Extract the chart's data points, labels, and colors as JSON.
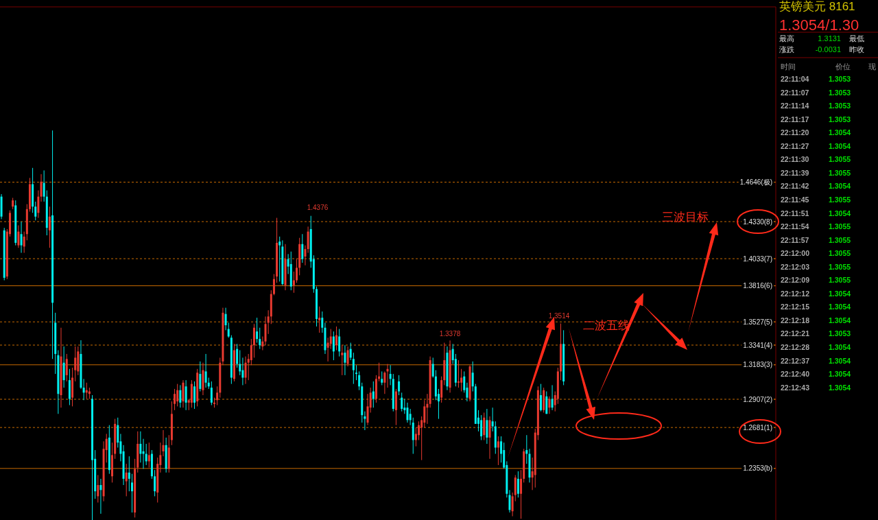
{
  "chart_data": [
    {
      "type": "candlestick",
      "tick_labels": "y",
      "ylim": [
        1.194,
        1.605
      ],
      "yticks": [
        {
          "value": 1.4646,
          "label": "1.4646(极)"
        },
        {
          "value": 1.433,
          "label": "1.4330(8)"
        },
        {
          "value": 1.4033,
          "label": "1.4033(7)"
        },
        {
          "value": 1.3816,
          "label": "1.3816(6)"
        },
        {
          "value": 1.3527,
          "label": "1.3527(5)"
        },
        {
          "value": 1.3341,
          "label": "1.3341(4)"
        },
        {
          "value": 1.3183,
          "label": "1.3183(3)"
        },
        {
          "value": 1.2907,
          "label": "1.2907(2)"
        },
        {
          "value": 1.2681,
          "label": "1.2681(1)"
        },
        {
          "value": 1.2353,
          "label": "1.2353(b)"
        }
      ],
      "categories": [
        null,
        null,
        null,
        null,
        null,
        null,
        null,
        null,
        null,
        null,
        null,
        null,
        null,
        null,
        null,
        null,
        null,
        null,
        null,
        null,
        null,
        null,
        null,
        null,
        null,
        null,
        null,
        null,
        null,
        null,
        null,
        null,
        null,
        null,
        null,
        null,
        null,
        null,
        null,
        null,
        null,
        null,
        null,
        null,
        null,
        null,
        null,
        null,
        null,
        null,
        null,
        null,
        null,
        null,
        null,
        null,
        null,
        null,
        null,
        null,
        null,
        null,
        null,
        null,
        null,
        null,
        null,
        null,
        null,
        null,
        null,
        null,
        null,
        null,
        null,
        null,
        null,
        null,
        null,
        null,
        null,
        null,
        null,
        null,
        null,
        null,
        null,
        null,
        null,
        null,
        null,
        null,
        null,
        null,
        null,
        null,
        null,
        null,
        null,
        null,
        null,
        null,
        null,
        null,
        null,
        null,
        null,
        null,
        null,
        null,
        null,
        null,
        null,
        null,
        null,
        null,
        null,
        null,
        null,
        null,
        null,
        null,
        null,
        null,
        null,
        null,
        null,
        null,
        null,
        null,
        null,
        null,
        null,
        null,
        null,
        null,
        null,
        null,
        null,
        null,
        null,
        null,
        null,
        null,
        null,
        null,
        null,
        null,
        null,
        null,
        null,
        null,
        null,
        null,
        null,
        null,
        null,
        null,
        null,
        null,
        null,
        null,
        null,
        null,
        null,
        null,
        null,
        null,
        null,
        null,
        null,
        null,
        null,
        null,
        null,
        null,
        null,
        null,
        null,
        null,
        null,
        null,
        null,
        null,
        null,
        null,
        null,
        null,
        null,
        null,
        null,
        null,
        null,
        null,
        null,
        null,
        null,
        null,
        null,
        null,
        null,
        null,
        null,
        null,
        null,
        null,
        null,
        null,
        null,
        null,
        null,
        null,
        null,
        null,
        null,
        null,
        null,
        null,
        null,
        null,
        null,
        null,
        null,
        null,
        null,
        null,
        null,
        null,
        null,
        null,
        null,
        null,
        null,
        null,
        null,
        null,
        null,
        null,
        null,
        null,
        null,
        null,
        null,
        null,
        null,
        null,
        null,
        null,
        null,
        null,
        null,
        null,
        null,
        null,
        null,
        null,
        null,
        null,
        null,
        null,
        null,
        null,
        null,
        null,
        null,
        null,
        null,
        null,
        null,
        null,
        null,
        null,
        null
      ],
      "ohlc": [
        [
          1.453,
          1.455,
          1.435,
          1.437
        ],
        [
          1.426,
          1.428,
          1.386,
          1.388
        ],
        [
          1.389,
          1.427,
          1.387,
          1.425
        ],
        [
          1.423,
          1.442,
          1.421,
          1.44
        ],
        [
          1.445,
          1.452,
          1.443,
          1.45
        ],
        [
          1.446,
          1.45,
          1.414,
          1.416
        ],
        [
          1.414,
          1.43,
          1.412,
          1.425
        ],
        [
          1.423,
          1.433,
          1.408,
          1.414
        ],
        [
          1.413,
          1.425,
          1.408,
          1.421
        ],
        [
          1.423,
          1.447,
          1.418,
          1.443
        ],
        [
          1.443,
          1.468,
          1.441,
          1.463
        ],
        [
          1.463,
          1.476,
          1.44,
          1.445
        ],
        [
          1.445,
          1.449,
          1.434,
          1.437
        ],
        [
          1.44,
          1.458,
          1.436,
          1.453
        ],
        [
          1.453,
          1.471,
          1.449,
          1.465
        ],
        [
          1.464,
          1.474,
          1.449,
          1.453
        ],
        [
          1.453,
          1.458,
          1.422,
          1.428
        ],
        [
          1.426,
          1.445,
          1.412,
          1.437
        ],
        [
          1.438,
          1.506,
          1.323,
          1.368
        ],
        [
          1.352,
          1.36,
          1.311,
          1.327
        ],
        [
          1.326,
          1.33,
          1.279,
          1.295
        ],
        [
          1.294,
          1.348,
          1.284,
          1.325
        ],
        [
          1.32,
          1.333,
          1.3,
          1.306
        ],
        [
          1.31,
          1.327,
          1.305,
          1.323
        ],
        [
          1.306,
          1.315,
          1.286,
          1.291
        ],
        [
          1.292,
          1.316,
          1.285,
          1.308
        ],
        [
          1.314,
          1.333,
          1.305,
          1.324
        ],
        [
          1.313,
          1.333,
          1.31,
          1.329
        ],
        [
          1.327,
          1.338,
          1.299,
          1.3
        ],
        [
          1.3,
          1.307,
          1.29,
          1.296
        ],
        [
          1.296,
          1.304,
          1.291,
          1.298
        ],
        [
          1.295,
          1.3,
          1.291,
          1.297
        ],
        [
          1.291,
          1.294,
          1.194,
          1.242
        ],
        [
          1.243,
          1.25,
          1.211,
          1.217
        ],
        [
          1.213,
          1.23,
          1.208,
          1.222
        ],
        [
          1.222,
          1.227,
          1.199,
          1.218
        ],
        [
          1.213,
          1.257,
          1.209,
          1.251
        ],
        [
          1.25,
          1.263,
          1.24,
          1.259
        ],
        [
          1.26,
          1.27,
          1.231,
          1.234
        ],
        [
          1.229,
          1.256,
          1.224,
          1.246
        ],
        [
          1.247,
          1.275,
          1.243,
          1.271
        ],
        [
          1.27,
          1.276,
          1.252,
          1.256
        ],
        [
          1.257,
          1.263,
          1.241,
          1.247
        ],
        [
          1.249,
          1.254,
          1.222,
          1.227
        ],
        [
          1.225,
          1.239,
          1.213,
          1.232
        ],
        [
          1.232,
          1.245,
          1.217,
          1.227
        ],
        [
          1.224,
          1.231,
          1.2,
          1.217
        ],
        [
          1.2,
          1.243,
          1.196,
          1.235
        ],
        [
          1.236,
          1.265,
          1.232,
          1.255
        ],
        [
          1.255,
          1.265,
          1.24,
          1.247
        ],
        [
          1.249,
          1.259,
          1.235,
          1.247
        ],
        [
          1.247,
          1.255,
          1.238,
          1.241
        ],
        [
          1.241,
          1.256,
          1.236,
          1.246
        ],
        [
          1.247,
          1.25,
          1.227,
          1.229
        ],
        [
          1.229,
          1.234,
          1.213,
          1.217
        ],
        [
          1.216,
          1.244,
          1.208,
          1.239
        ],
        [
          1.238,
          1.256,
          1.232,
          1.246
        ],
        [
          1.249,
          1.266,
          1.245,
          1.254
        ],
        [
          1.254,
          1.26,
          1.232,
          1.235
        ],
        [
          1.235,
          1.262,
          1.232,
          1.252
        ],
        [
          1.258,
          1.289,
          1.254,
          1.279
        ],
        [
          1.287,
          1.299,
          1.282,
          1.295
        ],
        [
          1.289,
          1.303,
          1.285,
          1.298
        ],
        [
          1.298,
          1.302,
          1.284,
          1.288
        ],
        [
          1.289,
          1.306,
          1.284,
          1.304
        ],
        [
          1.301,
          1.306,
          1.282,
          1.288
        ],
        [
          1.288,
          1.291,
          1.282,
          1.29
        ],
        [
          1.288,
          1.306,
          1.284,
          1.303
        ],
        [
          1.301,
          1.305,
          1.283,
          1.288
        ],
        [
          1.289,
          1.315,
          1.285,
          1.312
        ],
        [
          1.311,
          1.321,
          1.297,
          1.299
        ],
        [
          1.298,
          1.32,
          1.294,
          1.314
        ],
        [
          1.313,
          1.327,
          1.3,
          1.304
        ],
        [
          1.304,
          1.308,
          1.299,
          1.301
        ],
        [
          1.3,
          1.305,
          1.286,
          1.288
        ],
        [
          1.287,
          1.292,
          1.284,
          1.288
        ],
        [
          1.29,
          1.301,
          1.286,
          1.296
        ],
        [
          1.296,
          1.324,
          1.292,
          1.32
        ],
        [
          1.321,
          1.364,
          1.318,
          1.36
        ],
        [
          1.359,
          1.364,
          1.346,
          1.35
        ],
        [
          1.347,
          1.352,
          1.34,
          1.341
        ],
        [
          1.34,
          1.342,
          1.303,
          1.308
        ],
        [
          1.307,
          1.335,
          1.305,
          1.33
        ],
        [
          1.331,
          1.335,
          1.316,
          1.319
        ],
        [
          1.319,
          1.33,
          1.31,
          1.313
        ],
        [
          1.314,
          1.324,
          1.302,
          1.308
        ],
        [
          1.308,
          1.325,
          1.303,
          1.32
        ],
        [
          1.32,
          1.327,
          1.306,
          1.323
        ],
        [
          1.322,
          1.339,
          1.318,
          1.334
        ],
        [
          1.334,
          1.351,
          1.324,
          1.348
        ],
        [
          1.345,
          1.356,
          1.336,
          1.339
        ],
        [
          1.339,
          1.348,
          1.331,
          1.334
        ],
        [
          1.333,
          1.341,
          1.33,
          1.337
        ],
        [
          1.337,
          1.357,
          1.334,
          1.351
        ],
        [
          1.352,
          1.362,
          1.343,
          1.357
        ],
        [
          1.357,
          1.378,
          1.351,
          1.375
        ],
        [
          1.375,
          1.391,
          1.374,
          1.387
        ],
        [
          1.389,
          1.436,
          1.384,
          1.416
        ],
        [
          1.417,
          1.421,
          1.385,
          1.414
        ],
        [
          1.413,
          1.418,
          1.382,
          1.383
        ],
        [
          1.382,
          1.415,
          1.378,
          1.403
        ],
        [
          1.403,
          1.407,
          1.391,
          1.397
        ],
        [
          1.399,
          1.409,
          1.378,
          1.381
        ],
        [
          1.382,
          1.393,
          1.376,
          1.386
        ],
        [
          1.386,
          1.403,
          1.384,
          1.396
        ],
        [
          1.396,
          1.42,
          1.39,
          1.415
        ],
        [
          1.415,
          1.423,
          1.4,
          1.403
        ],
        [
          1.405,
          1.414,
          1.398,
          1.411
        ],
        [
          1.411,
          1.429,
          1.408,
          1.425
        ],
        [
          1.427,
          1.4376,
          1.396,
          1.401
        ],
        [
          1.403,
          1.406,
          1.376,
          1.379
        ],
        [
          1.379,
          1.381,
          1.349,
          1.355
        ],
        [
          1.354,
          1.365,
          1.344,
          1.356
        ],
        [
          1.356,
          1.361,
          1.344,
          1.348
        ],
        [
          1.348,
          1.352,
          1.327,
          1.33
        ],
        [
          1.332,
          1.34,
          1.321,
          1.336
        ],
        [
          1.335,
          1.347,
          1.331,
          1.341
        ],
        [
          1.341,
          1.345,
          1.322,
          1.329
        ],
        [
          1.334,
          1.349,
          1.33,
          1.342
        ],
        [
          1.341,
          1.347,
          1.325,
          1.329
        ],
        [
          1.326,
          1.334,
          1.31,
          1.328
        ],
        [
          1.328,
          1.334,
          1.31,
          1.32
        ],
        [
          1.319,
          1.333,
          1.317,
          1.33
        ],
        [
          1.331,
          1.336,
          1.322,
          1.324
        ],
        [
          1.323,
          1.328,
          1.303,
          1.314
        ],
        [
          1.312,
          1.318,
          1.306,
          1.311
        ],
        [
          1.31,
          1.313,
          1.298,
          1.301
        ],
        [
          1.301,
          1.304,
          1.272,
          1.278
        ],
        [
          1.277,
          1.281,
          1.266,
          1.275
        ],
        [
          1.272,
          1.295,
          1.27,
          1.285
        ],
        [
          1.284,
          1.3,
          1.28,
          1.296
        ],
        [
          1.297,
          1.305,
          1.284,
          1.291
        ],
        [
          1.291,
          1.31,
          1.288,
          1.307
        ],
        [
          1.307,
          1.32,
          1.305,
          1.309
        ],
        [
          1.307,
          1.313,
          1.302,
          1.304
        ],
        [
          1.304,
          1.313,
          1.295,
          1.312
        ],
        [
          1.313,
          1.319,
          1.3,
          1.315
        ],
        [
          1.311,
          1.318,
          1.302,
          1.307
        ],
        [
          1.307,
          1.311,
          1.281,
          1.283
        ],
        [
          1.282,
          1.299,
          1.27,
          1.297
        ],
        [
          1.305,
          1.31,
          1.294,
          1.297
        ],
        [
          1.292,
          1.296,
          1.281,
          1.283
        ],
        [
          1.284,
          1.291,
          1.279,
          1.282
        ],
        [
          1.284,
          1.288,
          1.272,
          1.274
        ],
        [
          1.279,
          1.283,
          1.27,
          1.274
        ],
        [
          1.272,
          1.276,
          1.247,
          1.258
        ],
        [
          1.258,
          1.268,
          1.253,
          1.263
        ],
        [
          1.262,
          1.273,
          1.258,
          1.27
        ],
        [
          1.268,
          1.277,
          1.242,
          1.274
        ],
        [
          1.272,
          1.29,
          1.268,
          1.285
        ],
        [
          1.284,
          1.295,
          1.271,
          1.287
        ],
        [
          1.287,
          1.325,
          1.284,
          1.322
        ],
        [
          1.319,
          1.324,
          1.308,
          1.309
        ],
        [
          1.309,
          1.314,
          1.29,
          1.293
        ],
        [
          1.295,
          1.299,
          1.275,
          1.289
        ],
        [
          1.292,
          1.309,
          1.288,
          1.306
        ],
        [
          1.306,
          1.336,
          1.302,
          1.322
        ],
        [
          1.328,
          1.333,
          1.298,
          1.301
        ],
        [
          1.3,
          1.3378,
          1.296,
          1.33
        ],
        [
          1.331,
          1.335,
          1.319,
          1.322
        ],
        [
          1.323,
          1.327,
          1.301,
          1.304
        ],
        [
          1.304,
          1.322,
          1.3,
          1.305
        ],
        [
          1.304,
          1.315,
          1.297,
          1.308
        ],
        [
          1.309,
          1.313,
          1.296,
          1.298
        ],
        [
          1.3,
          1.304,
          1.289,
          1.292
        ],
        [
          1.291,
          1.318,
          1.289,
          1.317
        ],
        [
          1.312,
          1.321,
          1.297,
          1.301
        ],
        [
          1.301,
          1.303,
          1.271,
          1.271
        ],
        [
          1.276,
          1.282,
          1.265,
          1.271
        ],
        [
          1.274,
          1.278,
          1.258,
          1.261
        ],
        [
          1.262,
          1.28,
          1.258,
          1.276
        ],
        [
          1.274,
          1.283,
          1.255,
          1.26
        ],
        [
          1.26,
          1.277,
          1.243,
          1.274
        ],
        [
          1.273,
          1.284,
          1.265,
          1.269
        ],
        [
          1.269,
          1.273,
          1.247,
          1.252
        ],
        [
          1.252,
          1.261,
          1.238,
          1.257
        ],
        [
          1.257,
          1.261,
          1.24,
          1.247
        ],
        [
          1.25,
          1.256,
          1.235,
          1.236
        ],
        [
          1.238,
          1.241,
          1.212,
          1.215
        ],
        [
          1.214,
          1.218,
          1.2,
          1.202
        ],
        [
          1.201,
          1.216,
          1.197,
          1.213
        ],
        [
          1.214,
          1.23,
          1.209,
          1.228
        ],
        [
          1.227,
          1.233,
          1.212,
          1.215
        ],
        [
          1.215,
          1.234,
          1.195,
          1.227
        ],
        [
          1.227,
          1.251,
          1.224,
          1.249
        ],
        [
          1.25,
          1.262,
          1.239,
          1.247
        ],
        [
          1.247,
          1.251,
          1.224,
          1.228
        ],
        [
          1.228,
          1.244,
          1.218,
          1.233
        ],
        [
          1.23,
          1.267,
          1.22,
          1.264
        ],
        [
          1.262,
          1.301,
          1.258,
          1.298
        ],
        [
          1.294,
          1.303,
          1.281,
          1.282
        ],
        [
          1.282,
          1.3,
          1.28,
          1.298
        ],
        [
          1.293,
          1.297,
          1.279,
          1.279
        ],
        [
          1.284,
          1.293,
          1.279,
          1.291
        ],
        [
          1.291,
          1.302,
          1.282,
          1.284
        ],
        [
          1.286,
          1.297,
          1.281,
          1.294
        ],
        [
          1.291,
          1.316,
          1.287,
          1.313
        ],
        [
          1.313,
          1.3514,
          1.306,
          1.335
        ],
        [
          1.335,
          1.346,
          1.302,
          1.305
        ],
        null,
        null,
        null,
        null,
        null,
        null,
        null,
        null,
        null,
        null,
        null,
        null,
        null,
        null,
        null,
        null,
        null,
        null,
        null,
        null,
        null,
        null,
        null,
        null,
        null,
        null,
        null,
        null,
        null,
        null,
        null,
        null,
        null,
        null,
        null,
        null,
        null,
        null,
        null,
        null,
        null,
        null,
        null,
        null,
        null,
        null,
        null,
        null,
        null,
        null,
        null,
        null,
        null,
        null,
        null,
        null,
        null,
        null,
        null,
        null,
        null,
        null,
        null,
        null,
        null,
        null,
        null,
        null,
        null,
        null,
        null,
        null,
        null,
        null
      ],
      "colors": [
        "#00f0f0",
        "#00f0f0",
        "#e83a30",
        "#e83a30",
        "#e83a30",
        "#00f0f0",
        "#e83a30",
        "#00f0f0",
        "#e83a30",
        "#e83a30",
        "#e83a30",
        "#00f0f0",
        "#00f0f0",
        "#e83a30",
        "#e83a30",
        "#00f0f0",
        "#00f0f0",
        "#e83a30",
        "#00f0f0",
        "#00f0f0",
        "#00f0f0",
        "#e83a30",
        "#00f0f0",
        "#e83a30",
        "#00f0f0",
        "#e83a30",
        "#e83a30",
        "#e83a30",
        "#00f0f0",
        "#00f0f0",
        "#e83a30",
        "#e83a30",
        "#00f0f0",
        "#00f0f0",
        "#e83a30",
        "#00f0f0",
        "#e83a30",
        "#e83a30",
        "#00f0f0",
        "#e83a30",
        "#e83a30",
        "#00f0f0",
        "#00f0f0",
        "#00f0f0",
        "#e83a30",
        "#00f0f0",
        "#00f0f0",
        "#e83a30",
        "#e83a30",
        "#00f0f0",
        "#00f0f0",
        "#00f0f0",
        "#e83a30",
        "#00f0f0",
        "#00f0f0",
        "#e83a30",
        "#e83a30",
        "#e83a30",
        "#00f0f0",
        "#e83a30",
        "#e83a30",
        "#e83a30",
        "#e83a30",
        "#00f0f0",
        "#e83a30",
        "#00f0f0",
        "#e83a30",
        "#e83a30",
        "#00f0f0",
        "#e83a30",
        "#00f0f0",
        "#e83a30",
        "#00f0f0",
        "#00f0f0",
        "#00f0f0",
        "#e83a30",
        "#e83a30",
        "#e83a30",
        "#e83a30",
        "#00f0f0",
        "#00f0f0",
        "#00f0f0",
        "#e83a30",
        "#00f0f0",
        "#00f0f0",
        "#00f0f0",
        "#e83a30",
        "#e83a30",
        "#e83a30",
        "#e83a30",
        "#00f0f0",
        "#00f0f0",
        "#e83a30",
        "#e83a30",
        "#e83a30",
        "#e83a30",
        "#e83a30",
        "#e83a30",
        "#00f0f0",
        "#00f0f0",
        "#e83a30",
        "#00f0f0",
        "#00f0f0",
        "#e83a30",
        "#e83a30",
        "#e83a30",
        "#00f0f0",
        "#e83a30",
        "#e83a30",
        "#00f0f0",
        "#00f0f0",
        "#00f0f0",
        "#e83a30",
        "#00f0f0",
        "#00f0f0",
        "#e83a30",
        "#e83a30",
        "#00f0f0",
        "#e83a30",
        "#00f0f0",
        "#e83a30",
        "#00f0f0",
        "#e83a30",
        "#00f0f0",
        "#00f0f0",
        "#00f0f0",
        "#00f0f0",
        "#00f0f0",
        "#00f0f0",
        "#e83a30",
        "#e83a30",
        "#00f0f0",
        "#e83a30",
        "#e83a30",
        "#00f0f0",
        "#e83a30",
        "#e83a30",
        "#00f0f0",
        "#00f0f0",
        "#e83a30",
        "#00f0f0",
        "#00f0f0",
        "#00f0f0",
        "#00f0f0",
        "#00f0f0",
        "#00f0f0",
        "#e83a30",
        "#e83a30",
        "#e83a30",
        "#e83a30",
        "#e83a30",
        "#e83a30",
        "#00f0f0",
        "#00f0f0",
        "#00f0f0",
        "#e83a30",
        "#e83a30",
        "#00f0f0",
        "#e83a30",
        "#00f0f0",
        "#00f0f0",
        "#e83a30",
        "#e83a30",
        "#00f0f0",
        "#00f0f0",
        "#e83a30",
        "#00f0f0",
        "#00f0f0",
        "#00f0f0",
        "#00f0f0",
        "#e83a30",
        "#00f0f0",
        "#e83a30",
        "#00f0f0",
        "#00f0f0",
        "#e83a30",
        "#00f0f0",
        "#00f0f0",
        "#00f0f0",
        "#00f0f0",
        "#e83a30",
        "#e83a30",
        "#00f0f0",
        "#e83a30",
        "#e83a30",
        "#00f0f0",
        "#00f0f0",
        "#e83a30",
        "#e83a30",
        "#e83a30",
        "#00f0f0",
        "#e83a30",
        "#00f0f0",
        "#e83a30",
        "#00f0f0",
        "#e83a30",
        "#e83a30",
        "#e83a30",
        "#00f0f0",
        null,
        null,
        null,
        null,
        null,
        null,
        null,
        null,
        null,
        null,
        null,
        null,
        null,
        null,
        null,
        null,
        null,
        null,
        null,
        null,
        null,
        null,
        null,
        null,
        null,
        null,
        null,
        null,
        null,
        null,
        null,
        null,
        null,
        null,
        null,
        null,
        null,
        null,
        null,
        null,
        null,
        null,
        null,
        null,
        null,
        null,
        null,
        null,
        null,
        null,
        null,
        null,
        null,
        null,
        null,
        null,
        null,
        null,
        null,
        null,
        null,
        null,
        null,
        null,
        null,
        null,
        null,
        null,
        null,
        null,
        null,
        null,
        null,
        null
      ],
      "ref_lines": [
        {
          "axis": "y",
          "value": 1.4646,
          "color": "#c86a00",
          "line_style": "dotted"
        },
        {
          "axis": "y",
          "value": 1.433,
          "color": "#c86a00",
          "line_style": "dotted"
        },
        {
          "axis": "y",
          "value": 1.4033,
          "color": "#c86a00",
          "line_style": "dotted"
        },
        {
          "axis": "y",
          "value": 1.3816,
          "color": "#c86a00",
          "line_style": "solid"
        },
        {
          "axis": "y",
          "value": 1.3527,
          "color": "#c86a00",
          "line_style": "dotted"
        },
        {
          "axis": "y",
          "value": 1.3341,
          "color": "#c86a00",
          "line_style": "dotted"
        },
        {
          "axis": "y",
          "value": 1.3183,
          "color": "#c86a00",
          "line_style": "solid"
        },
        {
          "axis": "y",
          "value": 1.2907,
          "color": "#c86a00",
          "line_style": "dotted"
        },
        {
          "axis": "y",
          "value": 1.2681,
          "color": "#c86a00",
          "line_style": "dotted"
        },
        {
          "axis": "y",
          "value": 1.2353,
          "color": "#c86a00",
          "line_style": "solid"
        }
      ],
      "annotations": [
        "1.4376",
        "1.3378",
        "1.3514",
        "二波五线",
        "三波目标"
      ]
    },
    {
      "type": "heatmap",
      "title": "英镑美元 8161",
      "subtitle": "1.3054/1.30",
      "annotations": [
        "最高",
        "1.3131",
        "最低",
        "涨跌",
        "-0.0031",
        "昨收",
        "时间",
        "现"
      ],
      "categories": [
        "价位"
      ],
      "y_categories": [
        "22:11:04",
        "22:11:07",
        "22:11:14",
        "22:11:17",
        "22:11:20",
        "22:11:27",
        "22:11:30",
        "22:11:39",
        "22:11:42",
        "22:11:45",
        "22:11:51",
        "22:11:54",
        "22:11:57",
        "22:12:00",
        "22:12:03",
        "22:12:09",
        "22:12:12",
        "22:12:15",
        "22:12:18",
        "22:12:21",
        "22:12:28",
        "22:12:37",
        "22:12:40",
        "22:12:43"
      ],
      "cells": [
        [
          1.3053
        ],
        [
          1.3053
        ],
        [
          1.3053
        ],
        [
          1.3053
        ],
        [
          1.3054
        ],
        [
          1.3054
        ],
        [
          1.3055
        ],
        [
          1.3055
        ],
        [
          1.3054
        ],
        [
          1.3055
        ],
        [
          1.3054
        ],
        [
          1.3055
        ],
        [
          1.3055
        ],
        [
          1.3055
        ],
        [
          1.3055
        ],
        [
          1.3055
        ],
        [
          1.3054
        ],
        [
          1.3054
        ],
        [
          1.3054
        ],
        [
          1.3053
        ],
        [
          1.3054
        ],
        [
          1.3054
        ],
        [
          1.3054
        ],
        [
          1.3054
        ]
      ],
      "data_labels": true
    }
  ]
}
